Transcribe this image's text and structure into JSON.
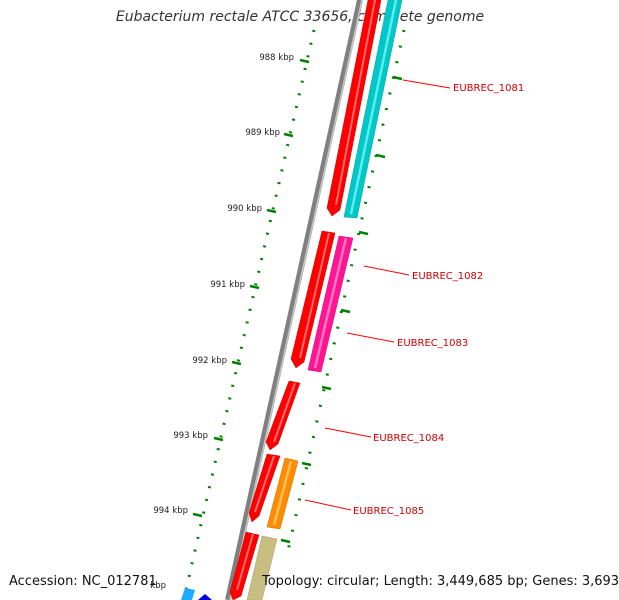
{
  "header": {
    "title": "Eubacterium rectale ATCC 33656, complete genome"
  },
  "footer": {
    "accession": "Accession: NC_012781",
    "topology": "Topology: circular; Length: 3,449,685 bp; Genes: 3,693"
  },
  "ticks": [
    {
      "label": "988 kbp"
    },
    {
      "label": "989 kbp"
    },
    {
      "label": "990 kbp"
    },
    {
      "label": "991 kbp"
    },
    {
      "label": "992 kbp"
    },
    {
      "label": "993 kbp"
    },
    {
      "label": "994 kbp"
    },
    {
      "label": "kbp"
    }
  ],
  "genes": [
    {
      "label": "EUBREC_1081",
      "color": "#00c8c8"
    },
    {
      "label": "EUBREC_1082",
      "color": "#ff1493"
    },
    {
      "label": "EUBREC_1083",
      "color": "#ff1493"
    },
    {
      "label": "EUBREC_1084",
      "color": "#ff0000"
    },
    {
      "label": "EUBREC_1085",
      "color": "#ff8c00"
    }
  ],
  "colors": {
    "backbone": "#808080",
    "cds": "#ff0000",
    "tick": "#008000",
    "label": "#cc0000",
    "leader": "#ff0000",
    "khaki": "#c8be82",
    "blue": "#0000e0",
    "sky": "#1eaaff"
  }
}
